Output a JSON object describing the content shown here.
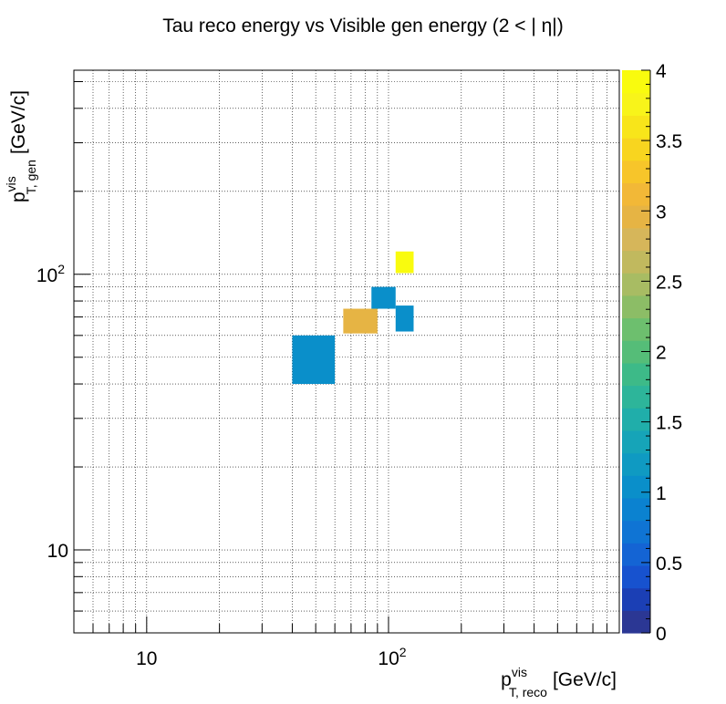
{
  "chart_data": {
    "type": "heatmap",
    "title": "Tau reco energy vs Visible gen energy (2 < |  η|)",
    "xlabel": {
      "base": "p",
      "sup": "vis",
      "sub": "T, reco",
      "unit": "[GeV/c]"
    },
    "ylabel": {
      "base": "p",
      "sup": "vis",
      "sub": "T, gen",
      "unit": "[GeV/c]"
    },
    "x_scale": "log",
    "y_scale": "log",
    "xlim": [
      5,
      900
    ],
    "ylim": [
      5,
      550
    ],
    "x_tick_labels": [
      {
        "value": 10,
        "base": "10",
        "exp": ""
      },
      {
        "value": 100,
        "base": "10",
        "exp": "2"
      }
    ],
    "y_tick_labels": [
      {
        "value": 10,
        "base": "10",
        "exp": ""
      },
      {
        "value": 100,
        "base": "10",
        "exp": "2"
      }
    ],
    "grid": true,
    "colorbar": {
      "range": [
        0,
        4
      ],
      "labels": [
        "0",
        "0.5",
        "1",
        "1.5",
        "2",
        "2.5",
        "3",
        "3.5",
        "4"
      ],
      "colors": [
        "#2b3794",
        "#1b3fb5",
        "#1752cf",
        "#1464d4",
        "#0f74d4",
        "#0b82d0",
        "#0a8fca",
        "#0f9ac2",
        "#16a4b8",
        "#20aeaa",
        "#2db59a",
        "#3dba88",
        "#55bd78",
        "#6dbf6e",
        "#8cbd66",
        "#a8bc63",
        "#c1b95e",
        "#d6b65a",
        "#e6b444",
        "#f2b837",
        "#f7c52a",
        "#f8d51f",
        "#f8e51a",
        "#f8f41a",
        "#f9fb0e"
      ]
    },
    "cells": [
      {
        "x": [
          40,
          60
        ],
        "y": [
          40,
          60
        ],
        "z": 1
      },
      {
        "x": [
          65,
          90
        ],
        "y": [
          61,
          75
        ],
        "z": 3
      },
      {
        "x": [
          85,
          107
        ],
        "y": [
          75,
          90
        ],
        "z": 1
      },
      {
        "x": [
          107,
          127
        ],
        "y": [
          62,
          77
        ],
        "z": 1
      },
      {
        "x": [
          107,
          127
        ],
        "y": [
          101,
          121
        ],
        "z": 4
      }
    ]
  }
}
